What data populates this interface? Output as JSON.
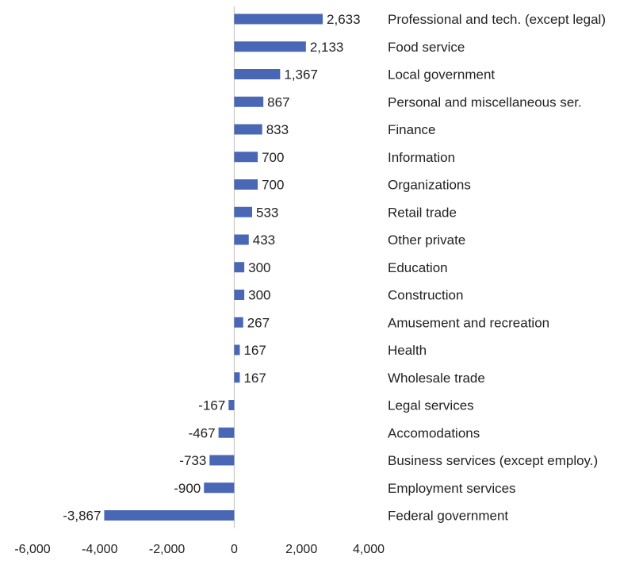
{
  "chart_data": {
    "type": "bar",
    "orientation": "horizontal",
    "title": "",
    "xlabel": "",
    "ylabel": "",
    "xlim": [
      -6000,
      4000
    ],
    "x_ticks": [
      {
        "value": -6000,
        "label": "-6,000"
      },
      {
        "value": -4000,
        "label": "-4,000"
      },
      {
        "value": -2000,
        "label": "-2,000"
      },
      {
        "value": 0,
        "label": "0"
      },
      {
        "value": 2000,
        "label": "2,000"
      },
      {
        "value": 4000,
        "label": "4,000"
      }
    ],
    "grid": false,
    "legend": "none",
    "bar_color": "#4a67b5",
    "categories": [
      "Professional and tech. (except legal)",
      "Food service",
      "Local government",
      "Personal and miscellaneous ser.",
      "Finance",
      "Information",
      "Organizations",
      "Retail trade",
      "Other private",
      "Education",
      "Construction",
      "Amusement and recreation",
      "Health",
      "Wholesale trade",
      "Legal services",
      "Accomodations",
      "Business services (except employ.)",
      "Employment services",
      "Federal government"
    ],
    "values": [
      2633,
      2133,
      1367,
      867,
      833,
      700,
      700,
      533,
      433,
      300,
      300,
      267,
      167,
      167,
      -167,
      -467,
      -733,
      -900,
      -3867
    ],
    "data_labels": [
      "2,633",
      "2,133",
      "1,367",
      "867",
      "833",
      "700",
      "700",
      "533",
      "433",
      "300",
      "300",
      "267",
      "167",
      "167",
      "-167",
      "-467",
      "-733",
      "-900",
      "-3,867"
    ]
  }
}
